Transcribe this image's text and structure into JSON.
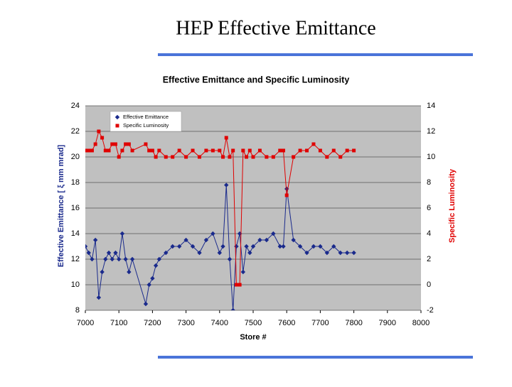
{
  "slide_title": "HEP Effective Emittance",
  "chart_data": {
    "type": "line",
    "title": "Effective Emittance and Specific Luminosity",
    "x_label": "Store #",
    "y_label": "Effective Emittance [ ξ mm mrad]",
    "y2_label": "Specific Luminosity",
    "x": [
      7000,
      7010,
      7020,
      7030,
      7040,
      7050,
      7060,
      7070,
      7080,
      7090,
      7100,
      7110,
      7120,
      7130,
      7140,
      7180,
      7190,
      7200,
      7210,
      7220,
      7240,
      7260,
      7280,
      7300,
      7320,
      7340,
      7360,
      7380,
      7400,
      7410,
      7420,
      7430,
      7440,
      7450,
      7460,
      7470,
      7480,
      7490,
      7500,
      7520,
      7540,
      7560,
      7580,
      7590,
      7600,
      7620,
      7640,
      7660,
      7680,
      7700,
      7720,
      7740,
      7760,
      7780,
      7800
    ],
    "series": [
      {
        "name": "Effective Emittance",
        "color": "#1a2a8c",
        "marker": "diamond",
        "values": [
          13,
          12.5,
          12,
          13.5,
          9,
          11,
          12,
          12.5,
          12,
          12.5,
          12,
          14,
          12,
          11,
          12,
          8.5,
          10,
          10.5,
          11.5,
          12,
          12.5,
          13,
          13,
          13.5,
          13,
          12.5,
          13.5,
          14,
          12.5,
          13,
          17.8,
          12,
          8,
          13,
          14,
          11,
          13,
          12.5,
          13,
          13.5,
          13.5,
          14,
          13,
          13,
          17.5,
          13.5,
          13,
          12.5,
          13,
          13,
          12.5,
          13,
          12.5,
          12.5,
          12.5
        ]
      },
      {
        "name": "Specific Luminosity",
        "color": "#e00000",
        "marker": "square",
        "axis": "y2",
        "values": [
          10.5,
          10.5,
          10.5,
          11,
          12,
          11.5,
          10.5,
          10.5,
          11,
          11,
          10,
          10.5,
          11,
          11,
          10.5,
          11,
          10.5,
          10.5,
          10,
          10.5,
          10,
          10,
          10.5,
          10,
          10.5,
          10,
          10.5,
          10.5,
          10.5,
          10,
          11.5,
          10,
          10.5,
          0,
          0,
          10.5,
          10,
          10.5,
          10,
          10.5,
          10,
          10,
          10.5,
          10.5,
          7,
          10,
          10.5,
          10.5,
          11,
          10.5,
          10,
          10.5,
          10,
          10.5,
          10.5
        ]
      }
    ],
    "xlim": [
      7000,
      8000
    ],
    "xticks": [
      7000,
      7100,
      7200,
      7300,
      7400,
      7500,
      7600,
      7700,
      7800,
      7900,
      8000
    ],
    "ylim": [
      8,
      24
    ],
    "yticks": [
      8,
      10,
      12,
      14,
      16,
      18,
      20,
      22,
      24
    ],
    "y2lim": [
      -2,
      14
    ],
    "y2ticks": [
      -2,
      0,
      2,
      4,
      6,
      8,
      10,
      12,
      14
    ],
    "grid": true,
    "legend": "upper-left"
  }
}
